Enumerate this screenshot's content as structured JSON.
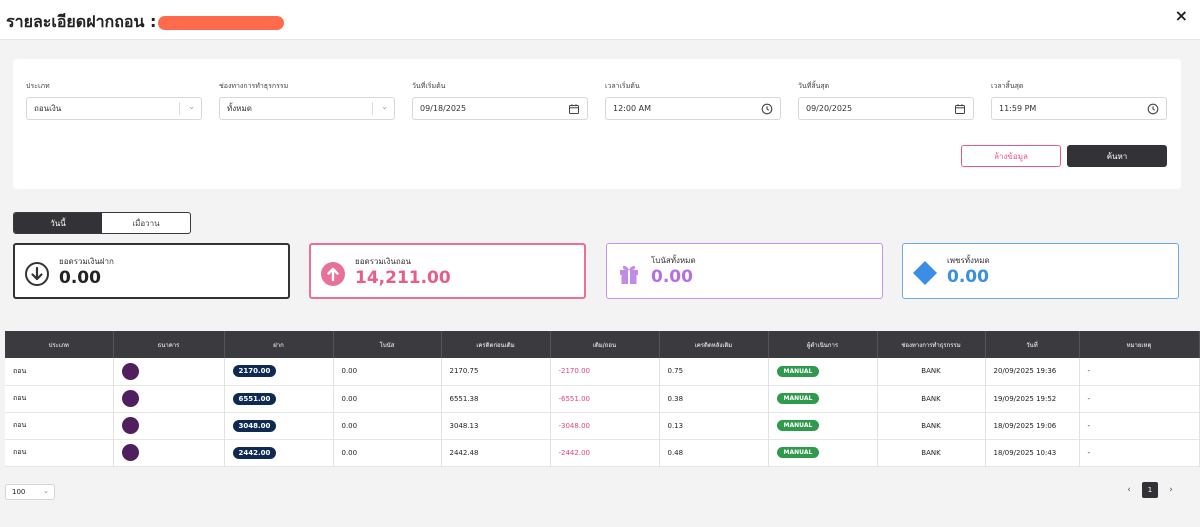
{
  "header": {
    "title": "รายละเอียดฝากถอน :",
    "close": "×"
  },
  "filters": {
    "type": {
      "label": "ประเภท",
      "value": "ถอนเงิน"
    },
    "channel": {
      "label": "ช่องทางการทำธุรกรรม",
      "value": "ทั้งหมด"
    },
    "start_date": {
      "label": "วันที่เริ่มต้น",
      "value": "09/18/2025"
    },
    "start_time": {
      "label": "เวลาเริ่มต้น",
      "value": "12:00 AM"
    },
    "end_date": {
      "label": "วันที่สิ้นสุด",
      "value": "09/20/2025"
    },
    "end_time": {
      "label": "เวลาสิ้นสุด",
      "value": "11:59 PM"
    },
    "clear_label": "ล้างข้อมูล",
    "search_label": "ค้นหา"
  },
  "period_tabs": {
    "today": "วันนี้",
    "yesterday": "เมื่อวาน"
  },
  "stats": {
    "deposit": {
      "label": "ยอดรวมเงินฝาก",
      "value": "0.00",
      "color": "#222222",
      "border": "#333333"
    },
    "withdraw": {
      "label": "ยอดรวมเงินถอน",
      "value": "14,211.00",
      "color": "#e75c89",
      "border": "#e8719a"
    },
    "bonus": {
      "label": "โบนัสทั้งหมด",
      "value": "0.00",
      "color": "#b56ee6",
      "border": "#c692ec"
    },
    "diamond": {
      "label": "เพชรทั้งหมด",
      "value": "0.00",
      "color": "#3a8ee6",
      "border": "#6aa9ec"
    }
  },
  "table": {
    "columns": [
      "ประเภท",
      "ธนาคาร",
      "ฝาก",
      "โบนัส",
      "เครดิตก่อนเติม",
      "เติม/ถอน",
      "เครดิตหลังเติม",
      "ผู้ดำเนินการ",
      "ช่องทางการทำธุรกรรม",
      "วันที่",
      "หมายเหตุ"
    ],
    "rows": [
      {
        "type": "ถอน",
        "amount": "2170.00",
        "bonus": "0.00",
        "before": "2170.75",
        "change": "-2170.00",
        "after": "0.75",
        "operator": "MANUAL",
        "channel": "BANK",
        "date": "20/09/2025 19:36",
        "note": "-"
      },
      {
        "type": "ถอน",
        "amount": "6551.00",
        "bonus": "0.00",
        "before": "6551.38",
        "change": "-6551.00",
        "after": "0.38",
        "operator": "MANUAL",
        "channel": "BANK",
        "date": "19/09/2025 19:52",
        "note": "-"
      },
      {
        "type": "ถอน",
        "amount": "3048.00",
        "bonus": "0.00",
        "before": "3048.13",
        "change": "-3048.00",
        "after": "0.13",
        "operator": "MANUAL",
        "channel": "BANK",
        "date": "18/09/2025 19:06",
        "note": "-"
      },
      {
        "type": "ถอน",
        "amount": "2442.00",
        "bonus": "0.00",
        "before": "2442.48",
        "change": "-2442.00",
        "after": "0.48",
        "operator": "MANUAL",
        "channel": "BANK",
        "date": "18/09/2025 10:43",
        "note": "-"
      }
    ]
  },
  "pagination": {
    "page_size": "100",
    "prev": "‹",
    "current": "1",
    "next": "›"
  }
}
